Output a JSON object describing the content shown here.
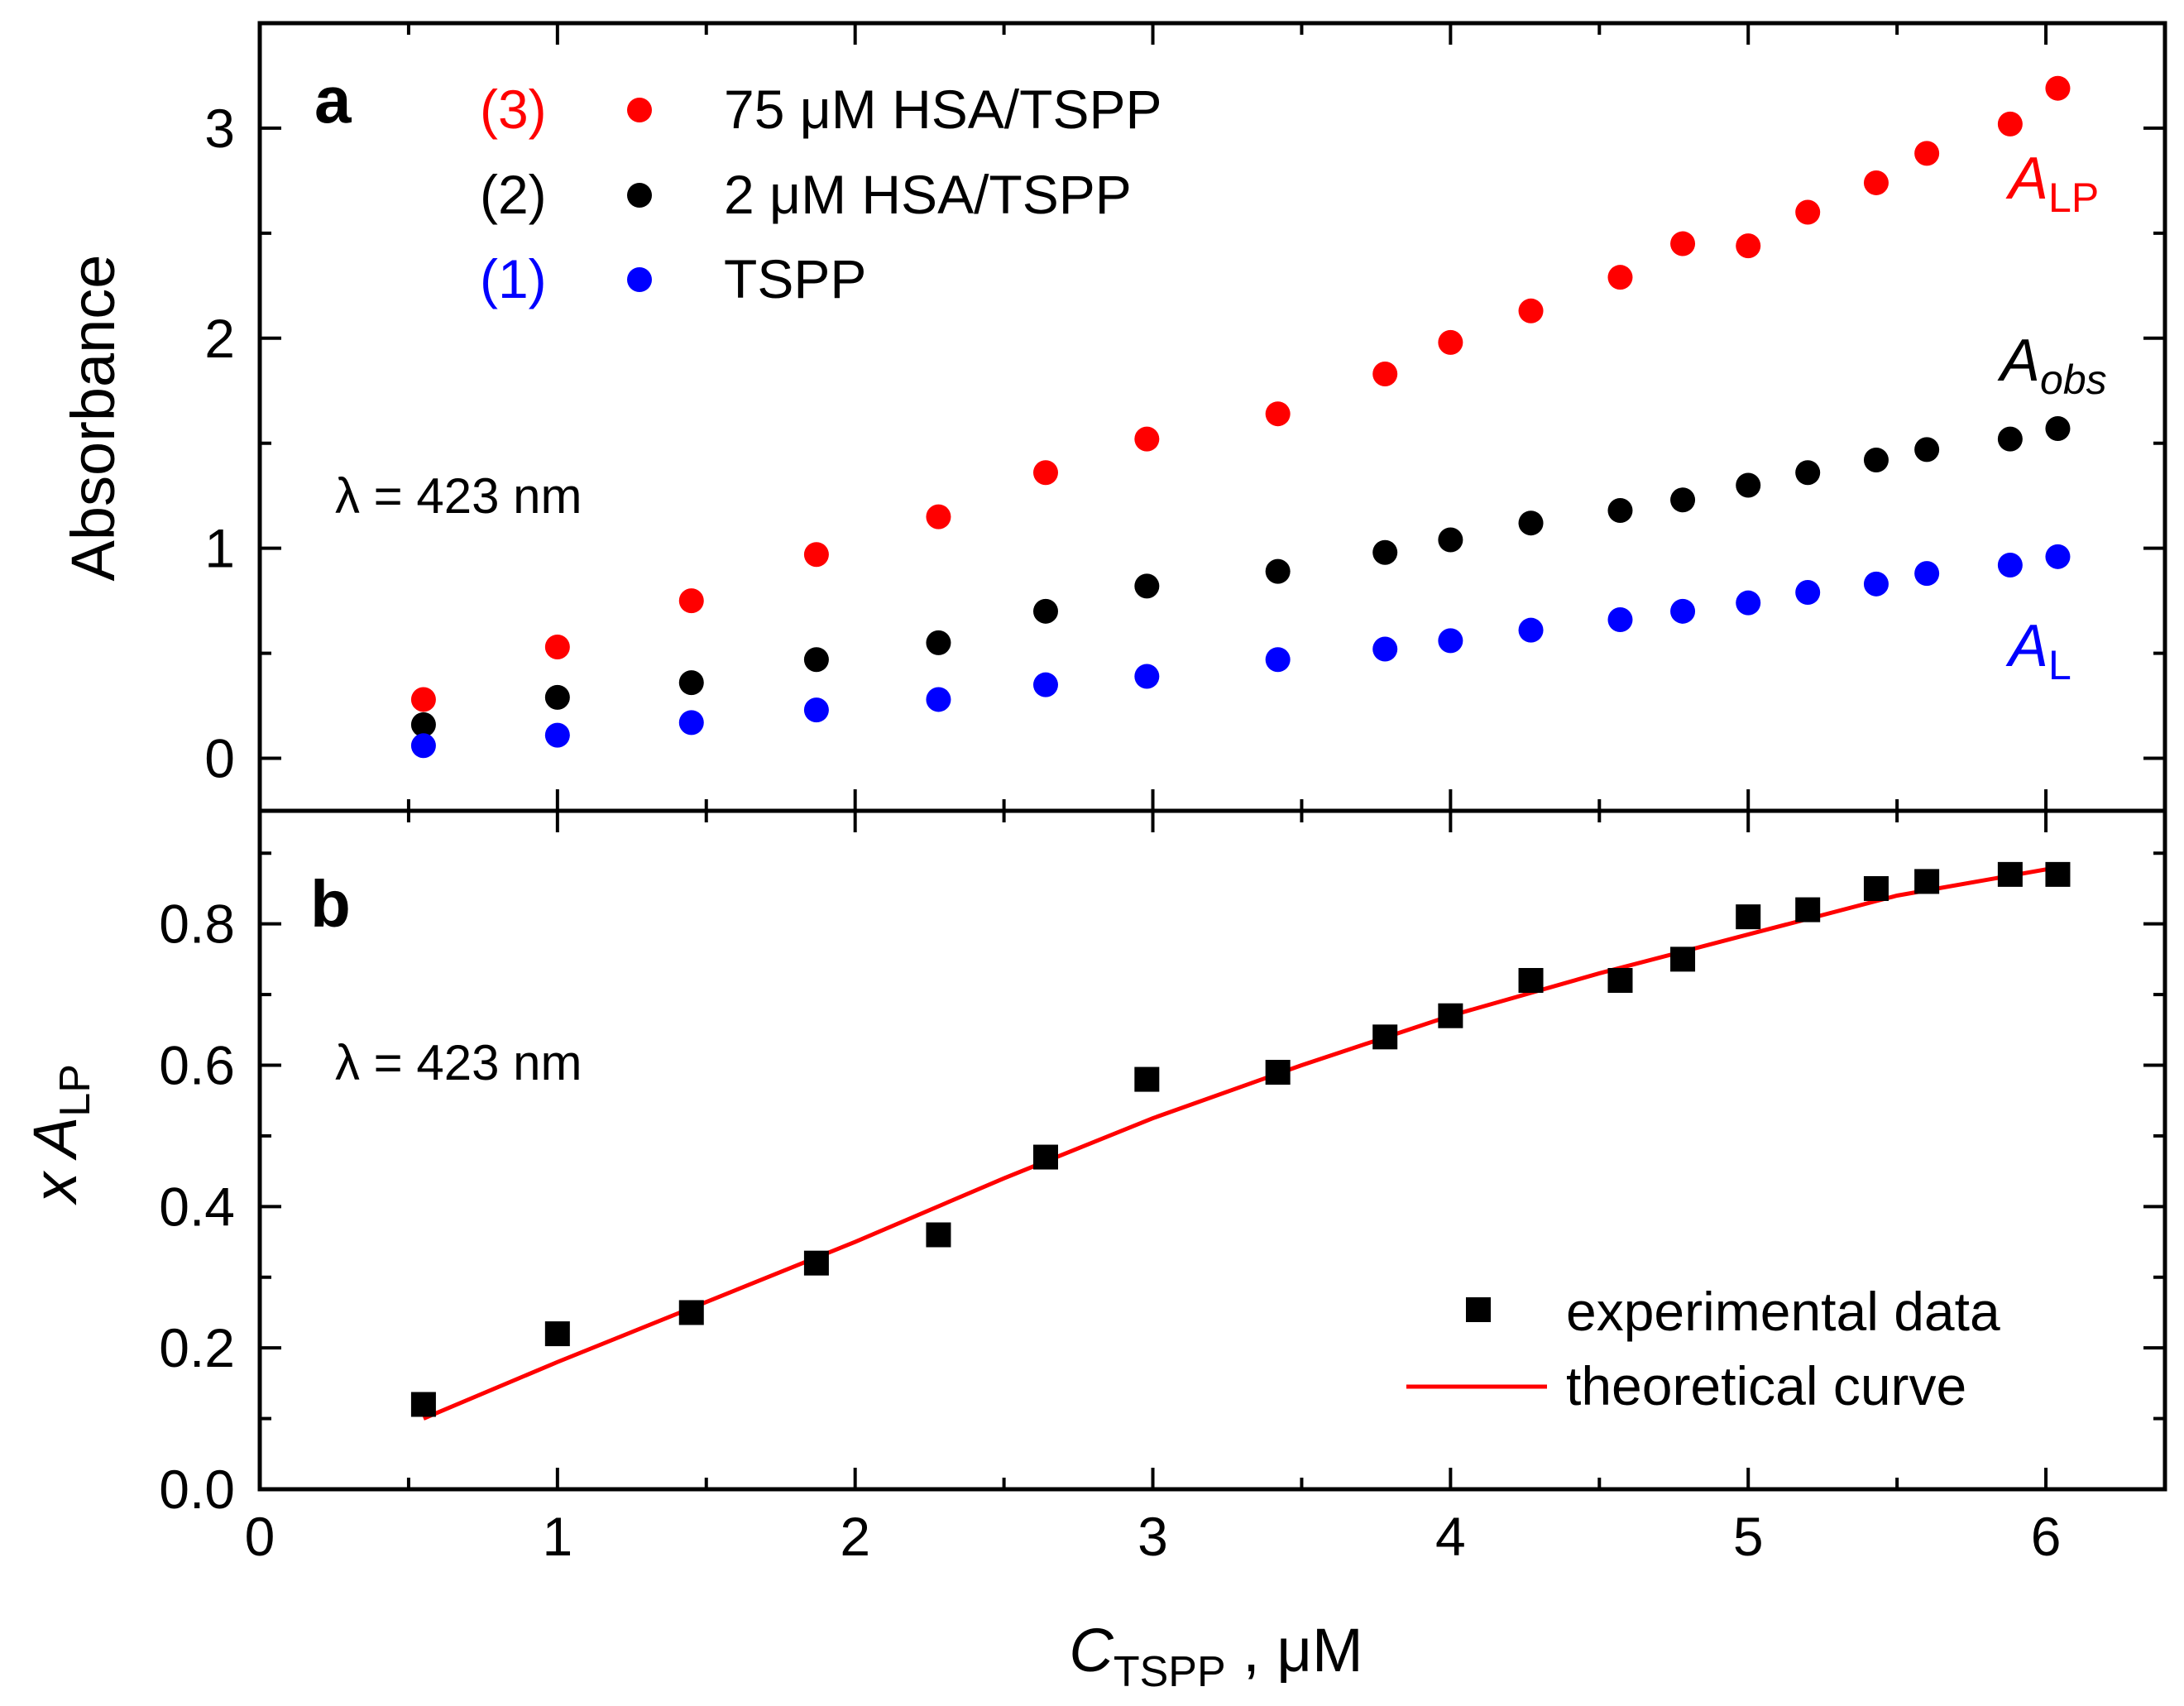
{
  "chart_data": [
    {
      "panel": "a",
      "type": "scatter",
      "ylabel": "Absorbance",
      "xlim": [
        0,
        6.4
      ],
      "ylim": [
        -0.25,
        3.5
      ],
      "xticks": [
        0,
        1,
        2,
        3,
        4,
        5,
        6
      ],
      "yticks": [
        0,
        1,
        2,
        3
      ],
      "annotation": "λ = 423 nm",
      "x": [
        0.55,
        1.0,
        1.45,
        1.87,
        2.28,
        2.64,
        2.98,
        3.42,
        3.78,
        4.0,
        4.27,
        4.57,
        4.78,
        5.0,
        5.2,
        5.43,
        5.6,
        5.88,
        6.04
      ],
      "series": [
        {
          "id": "3",
          "tag": "(3)",
          "name": "75 μM HSA/TSPP",
          "color": "#ff0000",
          "label_main": "A",
          "label_sub": "LP",
          "values": [
            0.28,
            0.53,
            0.75,
            0.97,
            1.15,
            1.36,
            1.52,
            1.64,
            1.83,
            1.98,
            2.13,
            2.29,
            2.45,
            2.44,
            2.6,
            2.74,
            2.88,
            3.02,
            3.19
          ]
        },
        {
          "id": "2",
          "tag": "(2)",
          "name": "2 μM HSA/TSPP",
          "color": "#000000",
          "label_main": "A",
          "label_sub": "obs",
          "values": [
            0.16,
            0.29,
            0.36,
            0.47,
            0.55,
            0.7,
            0.82,
            0.89,
            0.98,
            1.04,
            1.12,
            1.18,
            1.23,
            1.3,
            1.36,
            1.42,
            1.47,
            1.52,
            1.57
          ]
        },
        {
          "id": "1",
          "tag": "(1)",
          "name": "TSPP",
          "color": "#0000ff",
          "label_main": "A",
          "label_sub": "L",
          "values": [
            0.06,
            0.11,
            0.17,
            0.23,
            0.28,
            0.35,
            0.39,
            0.47,
            0.52,
            0.56,
            0.61,
            0.66,
            0.7,
            0.74,
            0.79,
            0.83,
            0.88,
            0.92,
            0.96
          ]
        }
      ]
    },
    {
      "panel": "b",
      "type": "scatter",
      "ylabel_main": "x A",
      "ylabel_sub": "LP",
      "xlabel_main": "C",
      "xlabel_sub": "TSPP",
      "xlabel_unit": " ,  μM",
      "xlim": [
        0,
        6.4
      ],
      "ylim": [
        0,
        0.96
      ],
      "xticks": [
        0,
        1,
        2,
        3,
        4,
        5,
        6
      ],
      "yticks": [
        "0.0",
        "0.2",
        "0.4",
        "0.6",
        "0.8"
      ],
      "annotation": "λ = 423 nm",
      "series": [
        {
          "name": "experimental data",
          "type": "scatter",
          "marker": "square",
          "color": "#000000",
          "x": [
            0.55,
            1.0,
            1.45,
            1.87,
            2.28,
            2.64,
            2.98,
            3.42,
            3.78,
            4.0,
            4.27,
            4.57,
            4.78,
            5.0,
            5.2,
            5.43,
            5.6,
            5.88,
            6.04
          ],
          "y": [
            0.12,
            0.22,
            0.25,
            0.32,
            0.36,
            0.47,
            0.58,
            0.59,
            0.64,
            0.67,
            0.72,
            0.72,
            0.75,
            0.81,
            0.82,
            0.85,
            0.86,
            0.87,
            0.87
          ]
        },
        {
          "name": "theoretical curve",
          "type": "line",
          "color": "#ff0000",
          "x": [
            0.55,
            1.0,
            1.5,
            2.0,
            2.5,
            3.0,
            3.5,
            4.0,
            4.5,
            5.0,
            5.5,
            6.04
          ],
          "y": [
            0.1,
            0.18,
            0.265,
            0.35,
            0.44,
            0.525,
            0.6,
            0.67,
            0.73,
            0.785,
            0.84,
            0.88
          ]
        }
      ]
    }
  ]
}
